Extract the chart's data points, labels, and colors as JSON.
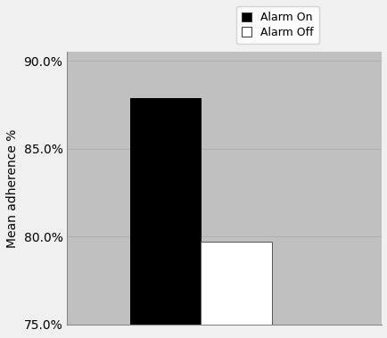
{
  "categories": [
    "Alarm On",
    "Alarm Off"
  ],
  "values": [
    87.9,
    79.7
  ],
  "bar_colors": [
    "#000000",
    "#ffffff"
  ],
  "bar_edge_colors": [
    "#000000",
    "#555555"
  ],
  "ylabel": "Mean adherence %",
  "ylim": [
    75.0,
    90.5
  ],
  "yticks": [
    75.0,
    80.0,
    85.0,
    90.0
  ],
  "ytick_labels": [
    "75.0%",
    "80.0%",
    "85.0%",
    "90.0%"
  ],
  "plot_bg_color": "#c0c0c0",
  "fig_bg_color": "#f0f0f0",
  "legend_labels": [
    "Alarm On",
    "Alarm Off"
  ],
  "legend_colors": [
    "#000000",
    "#ffffff"
  ],
  "bar_width": 0.18,
  "bar_positions": [
    0.35,
    0.53
  ],
  "xlim": [
    0.1,
    0.9
  ],
  "grid_color": "#aaaaaa",
  "ylabel_fontsize": 10,
  "tick_fontsize": 10,
  "legend_fontsize": 9
}
